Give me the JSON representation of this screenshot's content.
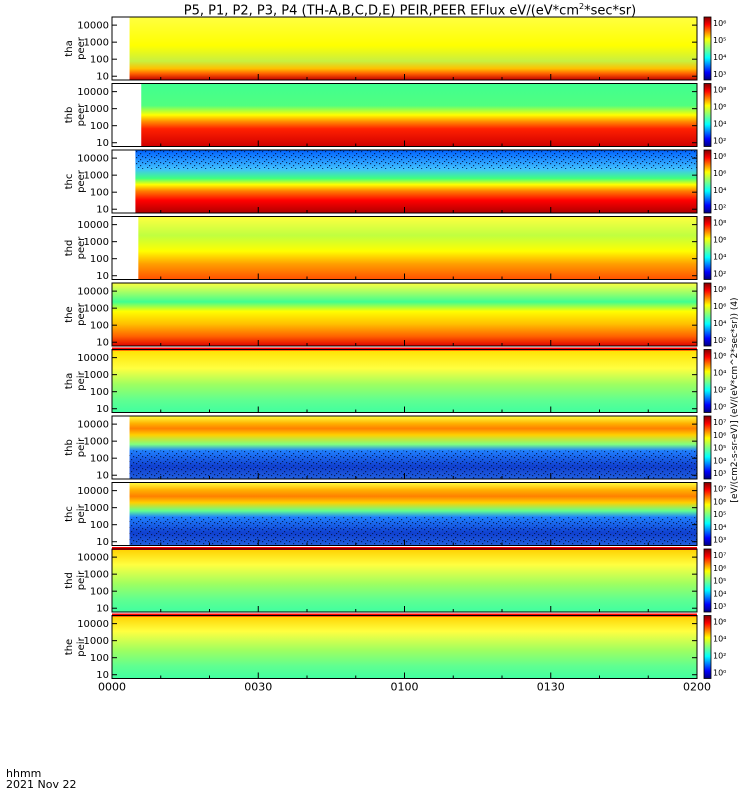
{
  "chart_data": {
    "type": "heatmap",
    "title": "P5, P1, P2, P3, P4 (TH-A,B,C,D,E) PEIR,PEER EFlux eV/(eV*cm²*sec*sr)",
    "title_parts": [
      "P5, P1, P2, P3, P4 (TH-A,B,C,D,E) PEIR,PEER EFlux eV/(eV*cm",
      "2",
      "*sec*sr)"
    ],
    "colorbar_label": "[eV/(cm2-s-sr-eV)] (eV/(eV*cm^2*sec*sr)) (4)",
    "x_axis": {
      "label": "hhmm",
      "date": "2021 Nov 22",
      "ticks": [
        "0000",
        "0030",
        "0100",
        "0130",
        "0200"
      ],
      "range": [
        "00:00",
        "02:00"
      ]
    },
    "panels": [
      {
        "ylabel": "tha peer",
        "probe": "tha",
        "species": "peer",
        "yticks": [
          "10",
          "100",
          "1000",
          "10000"
        ],
        "yrange": [
          6,
          30000
        ],
        "yscale": "log",
        "cbar_ticks": [
          "10⁶",
          "10⁵",
          "10⁴",
          "10³"
        ],
        "data_start": 0.03
      },
      {
        "ylabel": "thb peer",
        "probe": "thb",
        "species": "peer",
        "yticks": [
          "10",
          "100",
          "1000",
          "10000"
        ],
        "yrange": [
          6,
          30000
        ],
        "yscale": "log",
        "cbar_ticks": [
          "10⁸",
          "10⁶",
          "10⁴",
          "10²"
        ],
        "data_start": 0.05
      },
      {
        "ylabel": "thc peer",
        "probe": "thc",
        "species": "peer",
        "yticks": [
          "10",
          "100",
          "1000",
          "10000"
        ],
        "yrange": [
          6,
          30000
        ],
        "yscale": "log",
        "cbar_ticks": [
          "10⁸",
          "10⁶",
          "10⁴",
          "10²"
        ],
        "data_start": 0.04
      },
      {
        "ylabel": "thd peer",
        "probe": "thd",
        "species": "peer",
        "yticks": [
          "10",
          "100",
          "1000",
          "10000"
        ],
        "yrange": [
          6,
          30000
        ],
        "yscale": "log",
        "cbar_ticks": [
          "10⁸",
          "10⁶",
          "10⁴",
          "10²"
        ],
        "data_start": 0.045
      },
      {
        "ylabel": "the peer",
        "probe": "the",
        "species": "peer",
        "yticks": [
          "10",
          "100",
          "1000",
          "10000"
        ],
        "yrange": [
          6,
          30000
        ],
        "yscale": "log",
        "cbar_ticks": [
          "10⁸",
          "10⁶",
          "10⁴",
          "10²"
        ],
        "data_start": 0.0
      },
      {
        "ylabel": "tha peir",
        "probe": "tha",
        "species": "peir",
        "yticks": [
          "10",
          "100",
          "1000",
          "10000"
        ],
        "yrange": [
          6,
          30000
        ],
        "yscale": "log",
        "cbar_ticks": [
          "10⁶",
          "10⁴",
          "10²",
          "10⁰"
        ],
        "data_start": 0.0
      },
      {
        "ylabel": "thb peir",
        "probe": "thb",
        "species": "peir",
        "yticks": [
          "10",
          "100",
          "1000",
          "10000"
        ],
        "yrange": [
          6,
          30000
        ],
        "yscale": "log",
        "cbar_ticks": [
          "10⁷",
          "10⁶",
          "10⁵",
          "10⁴",
          "10³"
        ],
        "data_start": 0.03
      },
      {
        "ylabel": "thc peir",
        "probe": "thc",
        "species": "peir",
        "yticks": [
          "10",
          "100",
          "1000",
          "10000"
        ],
        "yrange": [
          6,
          30000
        ],
        "yscale": "log",
        "cbar_ticks": [
          "10⁷",
          "10⁶",
          "10⁵",
          "10⁴",
          "10³"
        ],
        "data_start": 0.03
      },
      {
        "ylabel": "thd peir",
        "probe": "thd",
        "species": "peir",
        "yticks": [
          "10",
          "100",
          "1000",
          "10000"
        ],
        "yrange": [
          6,
          30000
        ],
        "yscale": "log",
        "cbar_ticks": [
          "10⁷",
          "10⁶",
          "10⁵",
          "10⁴",
          "10³"
        ],
        "data_start": 0.0
      },
      {
        "ylabel": "the peir",
        "probe": "the",
        "species": "peir",
        "yticks": [
          "10",
          "100",
          "1000",
          "10000"
        ],
        "yrange": [
          6,
          30000
        ],
        "yscale": "log",
        "cbar_ticks": [
          "10⁶",
          "10⁴",
          "10²",
          "10⁰"
        ],
        "data_start": 0.0
      }
    ]
  }
}
